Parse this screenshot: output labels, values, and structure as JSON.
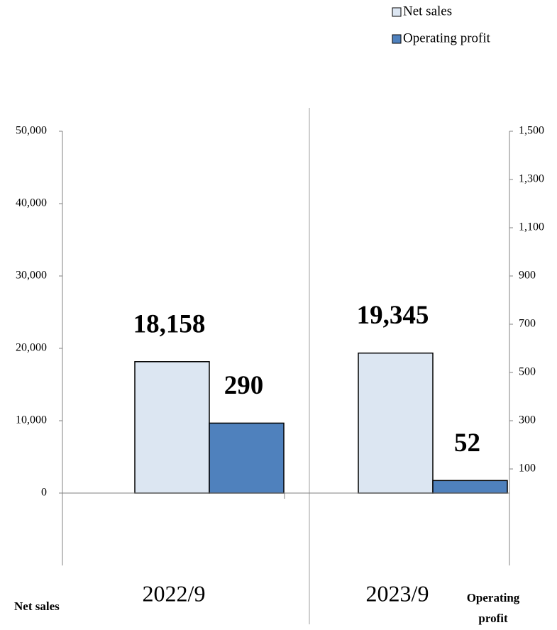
{
  "chart_data": {
    "type": "bar",
    "categories": [
      "2022/9",
      "2023/9"
    ],
    "series": [
      {
        "name": "Net sales",
        "color": "#dce6f2",
        "values": [
          18158,
          19345
        ],
        "value_labels": [
          "18,158",
          "19,345"
        ]
      },
      {
        "name": "Operating profit",
        "color": "#4f81bd",
        "axis": "y2",
        "values": [
          290,
          52
        ]
      }
    ],
    "ylabel": "Net sales",
    "y2label": "Operating profit",
    "ylim": [
      -10000,
      50000
    ],
    "yticks": [
      0,
      {
        "value": 10000,
        "label": "10,000"
      },
      {
        "value": 20000,
        "label": "20,000"
      },
      {
        "value": 30000,
        "label": "30,000"
      },
      {
        "value": 40000,
        "label": "40,000"
      },
      {
        "value": 50000,
        "label": "50,000"
      }
    ],
    "y2lim": [
      -300,
      1500
    ],
    "y2ticks": [
      100,
      300,
      500,
      700,
      900,
      {
        "value": 1100,
        "label": "1,100"
      },
      {
        "value": 1300,
        "label": "1,300"
      },
      {
        "value": 1500,
        "label": "1,500"
      }
    ],
    "legend": "top-right"
  }
}
